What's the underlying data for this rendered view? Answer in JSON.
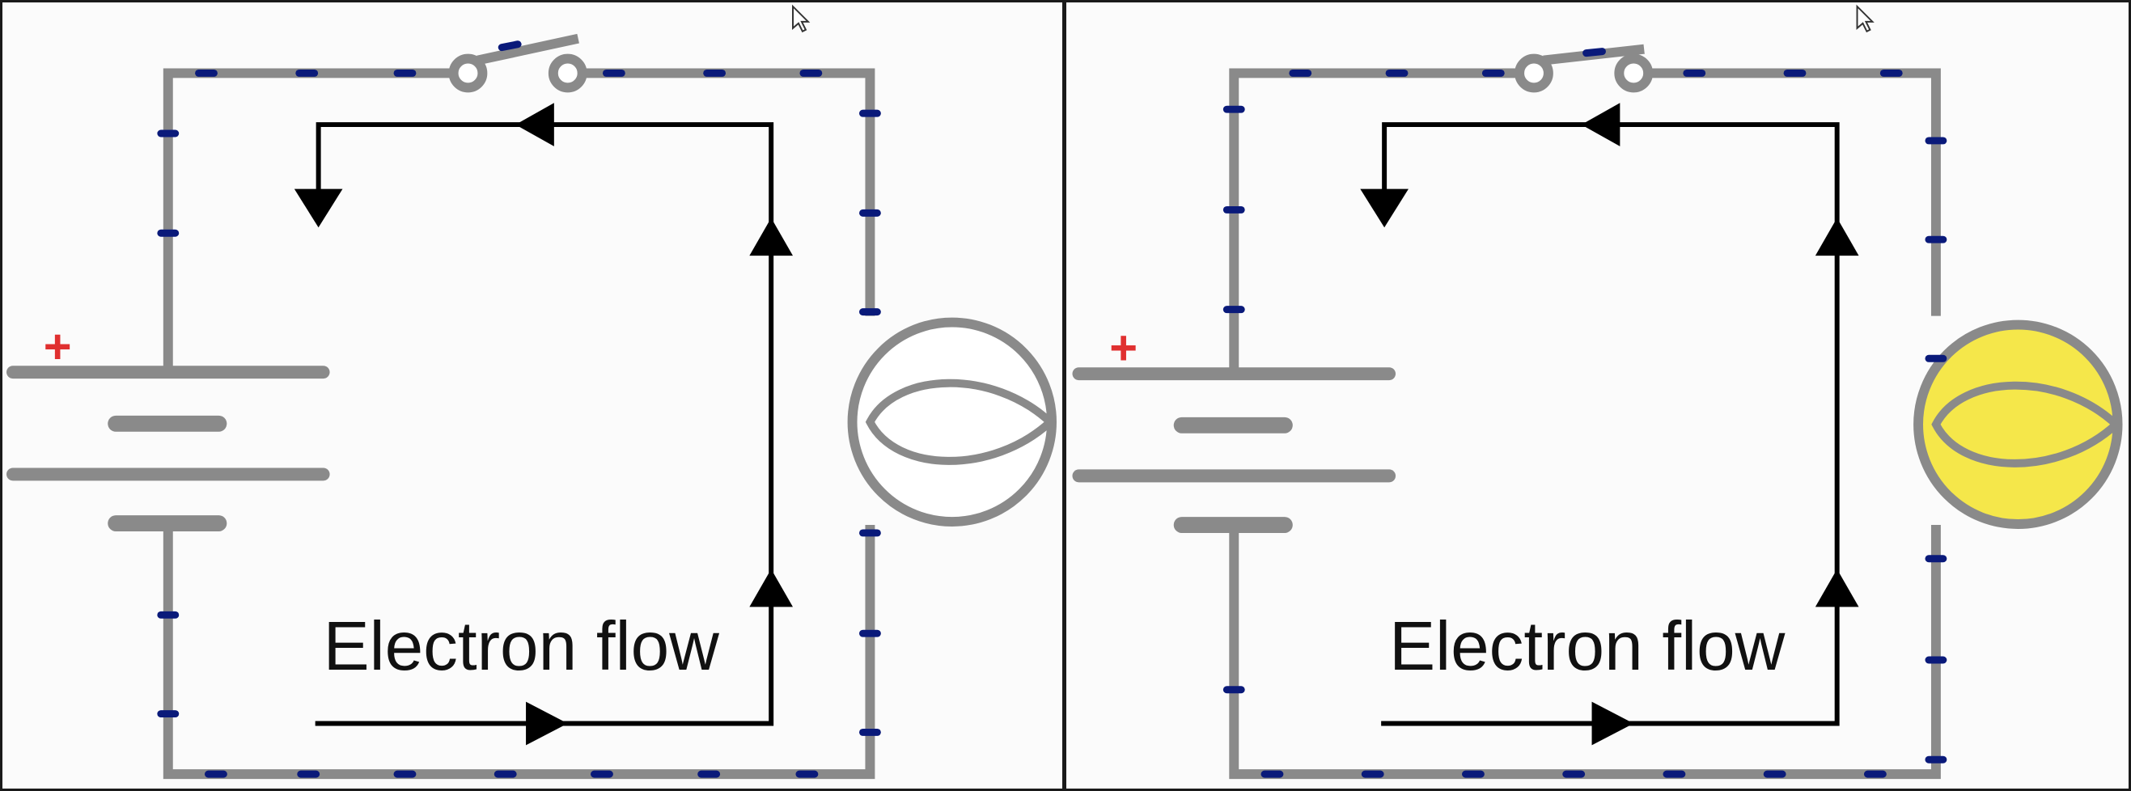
{
  "colors": {
    "wire": "#8a8a8a",
    "electron": "#0a1a7a",
    "arrow": "#000000",
    "plus": "#e03030",
    "bulb_off": "#ffffff",
    "bulb_on": "#f5e74a"
  },
  "panels": [
    {
      "label": "Electron flow",
      "plus_sign": "+",
      "bulb_state": "off",
      "cursor_icon": "mouse-pointer-icon"
    },
    {
      "label": "Electron flow",
      "plus_sign": "+",
      "bulb_state": "on",
      "cursor_icon": "mouse-pointer-icon"
    }
  ]
}
